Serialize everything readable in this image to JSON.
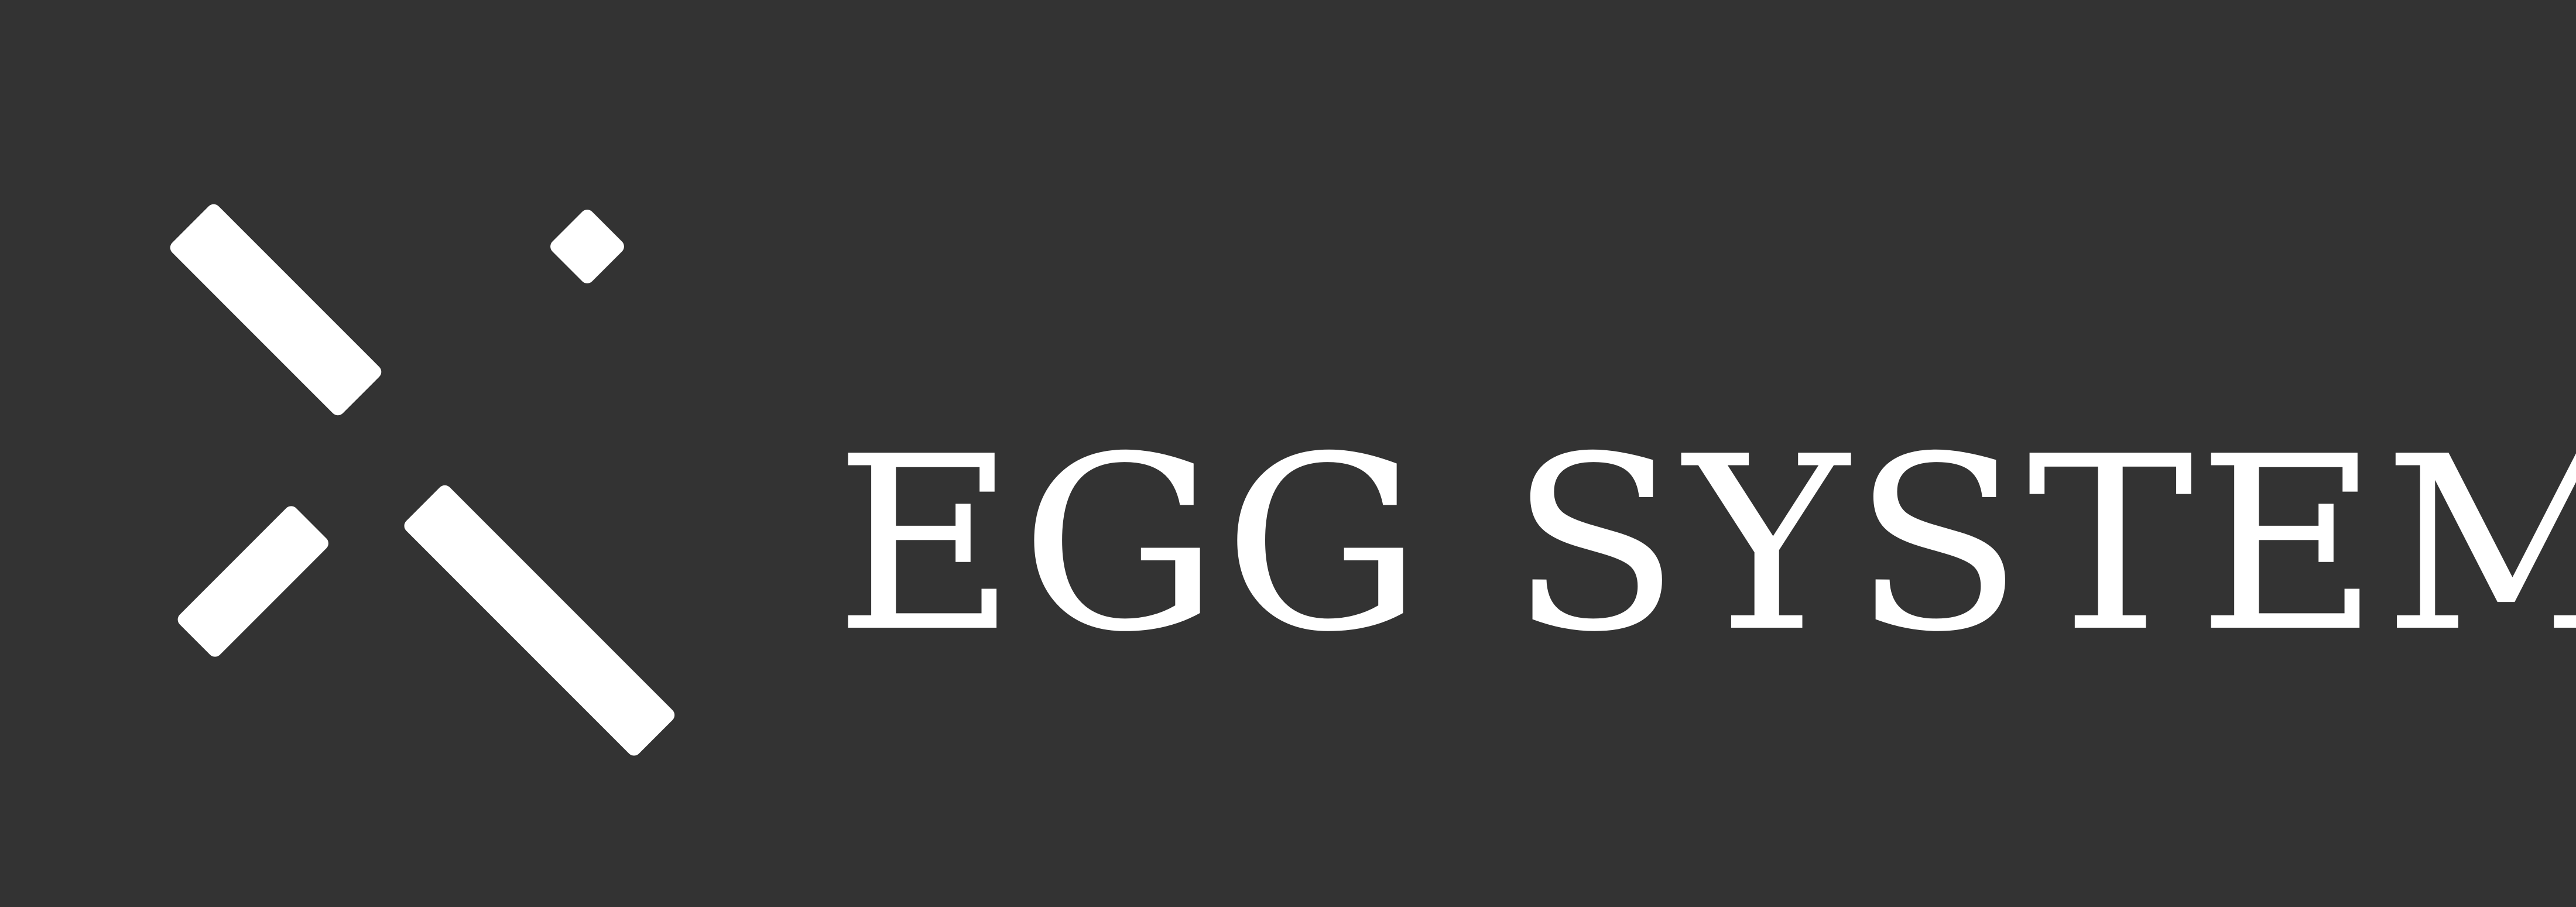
{
  "brand": {
    "name": "EGG SYSTEM",
    "logo_icon": "diagonal-bars-icon",
    "background_color": "#333333",
    "foreground_color": "#ffffff"
  }
}
